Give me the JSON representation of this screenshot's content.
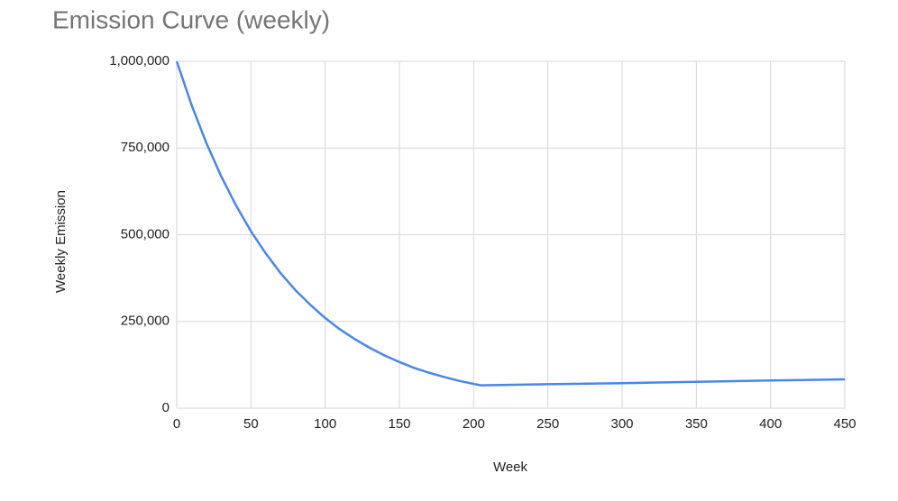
{
  "chart_data": {
    "type": "line",
    "title": "Emission Curve (weekly)",
    "x_label": "Week",
    "y_label": "Weekly Emission",
    "xlim": [
      0,
      450
    ],
    "xticks": [
      0,
      50,
      100,
      150,
      200,
      250,
      300,
      350,
      400,
      450
    ],
    "ylim": [
      0,
      1000000
    ],
    "yticks": [
      0,
      {
        "value": 250000,
        "label": "250,000"
      },
      {
        "value": 500000,
        "label": "500,000"
      },
      {
        "value": 750000,
        "label": "750,000"
      },
      {
        "value": 1000000,
        "label": "1,000,000"
      }
    ],
    "grid": true,
    "x": [
      0,
      10,
      20,
      30,
      40,
      50,
      60,
      70,
      80,
      90,
      100,
      110,
      120,
      130,
      140,
      150,
      160,
      170,
      180,
      190,
      200,
      205,
      250,
      300,
      350,
      400,
      450
    ],
    "series": [
      {
        "color": "#4a86e8",
        "values": [
          1000000,
          874000,
          764000,
          668000,
          584000,
          510000,
          446000,
          389000,
          340000,
          298000,
          260000,
          227000,
          199000,
          174000,
          152000,
          133000,
          116000,
          102000,
          90000,
          79000,
          70000,
          66000,
          69000,
          72000,
          76000,
          80000,
          83000
        ]
      }
    ]
  }
}
